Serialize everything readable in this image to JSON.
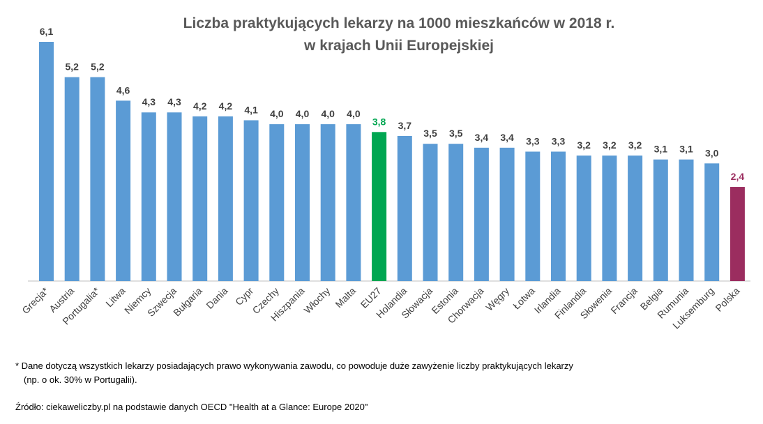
{
  "chart_data": {
    "type": "bar",
    "title": [
      "Liczba praktykujących lekarzy na 1000 mieszkańców w 2018 r.",
      "w krajach Unii Europejskiej"
    ],
    "categories": [
      "Grecja*",
      "Austria",
      "Portugalia*",
      "Litwa",
      "Niemcy",
      "Szwecja",
      "Bułgaria",
      "Dania",
      "Cypr",
      "Czechy",
      "Hiszpania",
      "Włochy",
      "Malta",
      "EU27",
      "Holandia",
      "Słowacja",
      "Estonia",
      "Chorwacja",
      "Węgry",
      "Łotwa",
      "Irlandia",
      "Finlandia",
      "Słowenia",
      "Francja",
      "Belgia",
      "Rumunia",
      "Luksemburg",
      "Polska"
    ],
    "values": [
      6.1,
      5.2,
      5.2,
      4.6,
      4.3,
      4.3,
      4.2,
      4.2,
      4.1,
      4.0,
      4.0,
      4.0,
      4.0,
      3.8,
      3.7,
      3.5,
      3.5,
      3.4,
      3.4,
      3.3,
      3.3,
      3.2,
      3.2,
      3.2,
      3.1,
      3.1,
      3.0,
      2.4
    ],
    "value_labels": [
      "6,1",
      "5,2",
      "5,2",
      "4,6",
      "4,3",
      "4,3",
      "4,2",
      "4,2",
      "4,1",
      "4,0",
      "4,0",
      "4,0",
      "4,0",
      "3,8",
      "3,7",
      "3,5",
      "3,5",
      "3,4",
      "3,4",
      "3,3",
      "3,3",
      "3,2",
      "3,2",
      "3,2",
      "3,1",
      "3,1",
      "3,0",
      "2,4"
    ],
    "colors": [
      "#5b9bd5",
      "#5b9bd5",
      "#5b9bd5",
      "#5b9bd5",
      "#5b9bd5",
      "#5b9bd5",
      "#5b9bd5",
      "#5b9bd5",
      "#5b9bd5",
      "#5b9bd5",
      "#5b9bd5",
      "#5b9bd5",
      "#5b9bd5",
      "#00a651",
      "#5b9bd5",
      "#5b9bd5",
      "#5b9bd5",
      "#5b9bd5",
      "#5b9bd5",
      "#5b9bd5",
      "#5b9bd5",
      "#5b9bd5",
      "#5b9bd5",
      "#5b9bd5",
      "#5b9bd5",
      "#5b9bd5",
      "#5b9bd5",
      "#9b2d5f"
    ],
    "label_colors": [
      "#404040",
      "#404040",
      "#404040",
      "#404040",
      "#404040",
      "#404040",
      "#404040",
      "#404040",
      "#404040",
      "#404040",
      "#404040",
      "#404040",
      "#404040",
      "#00a651",
      "#404040",
      "#404040",
      "#404040",
      "#404040",
      "#404040",
      "#404040",
      "#404040",
      "#404040",
      "#404040",
      "#404040",
      "#404040",
      "#404040",
      "#404040",
      "#9b2d5f"
    ],
    "notes": [
      "* Dane dotyczą wszystkich lekarzy posiadających prawo wykonywania zawodu, co powoduje duże zawyżenie liczby praktykujących lekarzy",
      "(np. o ok. 30% w Portugalii)."
    ],
    "source": "Źródło: ciekaweliczby.pl na podstawie danych OECD \"Health at a Glance: Europe 2020\""
  }
}
